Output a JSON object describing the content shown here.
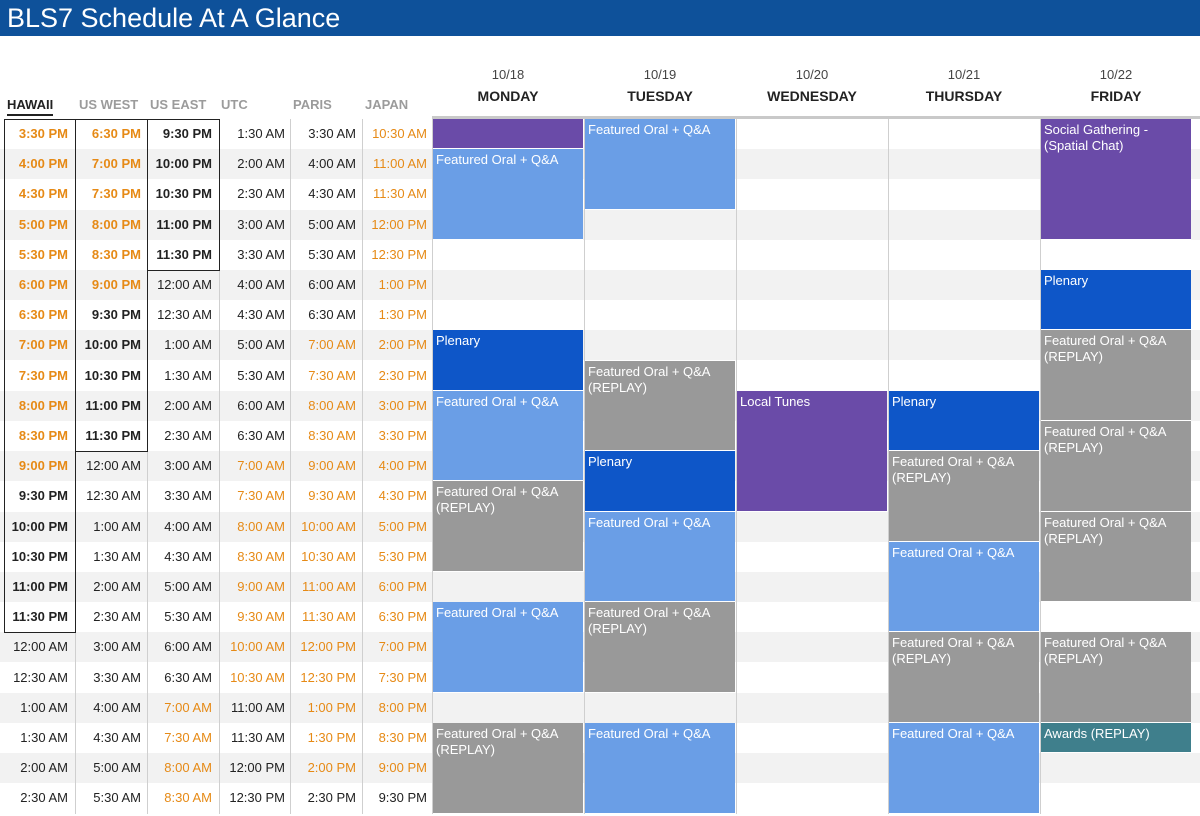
{
  "title": "BLS7 Schedule At A Glance",
  "timezones": [
    "HAWAII",
    "US WEST",
    "US EAST",
    "UTC",
    "PARIS",
    "JAPAN"
  ],
  "days": [
    {
      "date": "10/18",
      "name": "MONDAY"
    },
    {
      "date": "10/19",
      "name": "TUESDAY"
    },
    {
      "date": "10/20",
      "name": "WEDNESDAY"
    },
    {
      "date": "10/21",
      "name": "THURSDAY"
    },
    {
      "date": "10/22",
      "name": "FRIDAY"
    }
  ],
  "colors": {
    "header": "#0e519a",
    "purple": "#6a4ba8",
    "light_blue": "#6a9ee6",
    "dark_blue": "#0e56c8",
    "gray": "#999999",
    "teal": "#3f7f8c",
    "orange_text": "#e68a16",
    "row_alt": "#f2f2f2"
  },
  "times": [
    [
      "3:30 PM",
      "6:30 PM",
      "9:30 PM",
      "1:30 AM",
      "3:30 AM",
      "10:30 AM"
    ],
    [
      "4:00 PM",
      "7:00 PM",
      "10:00 PM",
      "2:00 AM",
      "4:00 AM",
      "11:00 AM"
    ],
    [
      "4:30 PM",
      "7:30 PM",
      "10:30 PM",
      "2:30 AM",
      "4:30 AM",
      "11:30 AM"
    ],
    [
      "5:00 PM",
      "8:00 PM",
      "11:00 PM",
      "3:00 AM",
      "5:00 AM",
      "12:00 PM"
    ],
    [
      "5:30 PM",
      "8:30 PM",
      "11:30 PM",
      "3:30 AM",
      "5:30 AM",
      "12:30 PM"
    ],
    [
      "6:00 PM",
      "9:00 PM",
      "12:00 AM",
      "4:00 AM",
      "6:00 AM",
      "1:00 PM"
    ],
    [
      "6:30 PM",
      "9:30 PM",
      "12:30 AM",
      "4:30 AM",
      "6:30 AM",
      "1:30 PM"
    ],
    [
      "7:00 PM",
      "10:00 PM",
      "1:00 AM",
      "5:00 AM",
      "7:00 AM",
      "2:00 PM"
    ],
    [
      "7:30 PM",
      "10:30 PM",
      "1:30 AM",
      "5:30 AM",
      "7:30 AM",
      "2:30 PM"
    ],
    [
      "8:00 PM",
      "11:00 PM",
      "2:00 AM",
      "6:00 AM",
      "8:00 AM",
      "3:00 PM"
    ],
    [
      "8:30 PM",
      "11:30 PM",
      "2:30 AM",
      "6:30 AM",
      "8:30 AM",
      "3:30 PM"
    ],
    [
      "9:00 PM",
      "12:00 AM",
      "3:00 AM",
      "7:00 AM",
      "9:00 AM",
      "4:00 PM"
    ],
    [
      "9:30 PM",
      "12:30 AM",
      "3:30 AM",
      "7:30 AM",
      "9:30 AM",
      "4:30 PM"
    ],
    [
      "10:00 PM",
      "1:00 AM",
      "4:00 AM",
      "8:00 AM",
      "10:00 AM",
      "5:00 PM"
    ],
    [
      "10:30 PM",
      "1:30 AM",
      "4:30 AM",
      "8:30 AM",
      "10:30 AM",
      "5:30 PM"
    ],
    [
      "11:00 PM",
      "2:00 AM",
      "5:00 AM",
      "9:00 AM",
      "11:00 AM",
      "6:00 PM"
    ],
    [
      "11:30 PM",
      "2:30 AM",
      "5:30 AM",
      "9:30 AM",
      "11:30 AM",
      "6:30 PM"
    ],
    [
      "12:00 AM",
      "3:00 AM",
      "6:00 AM",
      "10:00 AM",
      "12:00 PM",
      "7:00 PM"
    ],
    [
      "12:30 AM",
      "3:30 AM",
      "6:30 AM",
      "10:30 AM",
      "12:30 PM",
      "7:30 PM"
    ],
    [
      "1:00 AM",
      "4:00 AM",
      "7:00 AM",
      "11:00 AM",
      "1:00 PM",
      "8:00 PM"
    ],
    [
      "1:30 AM",
      "4:30 AM",
      "7:30 AM",
      "11:30 AM",
      "1:30 PM",
      "8:30 PM"
    ],
    [
      "2:00 AM",
      "5:00 AM",
      "8:00 AM",
      "12:00 PM",
      "2:00 PM",
      "9:00 PM"
    ],
    [
      "2:30 AM",
      "5:30 AM",
      "8:30 AM",
      "12:30 PM",
      "2:30 PM",
      "9:30 PM"
    ]
  ],
  "events": [
    {
      "day": 0,
      "start": 0,
      "span": 1,
      "label": "",
      "kind": "purple"
    },
    {
      "day": 0,
      "start": 1,
      "span": 3,
      "label": "Featured Oral + Q&A",
      "kind": "light_blue"
    },
    {
      "day": 0,
      "start": 7,
      "span": 2,
      "label": "Plenary",
      "kind": "dark_blue"
    },
    {
      "day": 0,
      "start": 9,
      "span": 3,
      "label": "Featured Oral + Q&A",
      "kind": "light_blue"
    },
    {
      "day": 0,
      "start": 12,
      "span": 3,
      "label": "Featured Oral + Q&A (REPLAY)",
      "kind": "gray"
    },
    {
      "day": 0,
      "start": 16,
      "span": 3,
      "label": "Featured Oral + Q&A",
      "kind": "light_blue"
    },
    {
      "day": 0,
      "start": 20,
      "span": 3,
      "label": "Featured Oral + Q&A (REPLAY)",
      "kind": "gray"
    },
    {
      "day": 1,
      "start": 0,
      "span": 3,
      "label": "Featured Oral + Q&A",
      "kind": "light_blue"
    },
    {
      "day": 1,
      "start": 8,
      "span": 3,
      "label": "Featured Oral + Q&A (REPLAY)",
      "kind": "gray"
    },
    {
      "day": 1,
      "start": 11,
      "span": 2,
      "label": "Plenary",
      "kind": "dark_blue"
    },
    {
      "day": 1,
      "start": 13,
      "span": 3,
      "label": "Featured Oral + Q&A",
      "kind": "light_blue"
    },
    {
      "day": 1,
      "start": 16,
      "span": 3,
      "label": "Featured Oral + Q&A (REPLAY)",
      "kind": "gray"
    },
    {
      "day": 1,
      "start": 20,
      "span": 3,
      "label": "Featured Oral + Q&A",
      "kind": "light_blue"
    },
    {
      "day": 2,
      "start": 9,
      "span": 4,
      "label": "Local Tunes",
      "kind": "purple"
    },
    {
      "day": 3,
      "start": 9,
      "span": 2,
      "label": "Plenary",
      "kind": "dark_blue"
    },
    {
      "day": 3,
      "start": 11,
      "span": 3,
      "label": "Featured Oral + Q&A (REPLAY)",
      "kind": "gray"
    },
    {
      "day": 3,
      "start": 14,
      "span": 3,
      "label": "Featured Oral + Q&A",
      "kind": "light_blue"
    },
    {
      "day": 3,
      "start": 17,
      "span": 3,
      "label": "Featured Oral + Q&A (REPLAY)",
      "kind": "gray"
    },
    {
      "day": 3,
      "start": 20,
      "span": 3,
      "label": "Featured Oral + Q&A",
      "kind": "light_blue"
    },
    {
      "day": 4,
      "start": 0,
      "span": 4,
      "label": "Social Gathering - (Spatial Chat)",
      "kind": "purple"
    },
    {
      "day": 4,
      "start": 5,
      "span": 2,
      "label": "Plenary",
      "kind": "dark_blue"
    },
    {
      "day": 4,
      "start": 7,
      "span": 3,
      "label": "Featured Oral + Q&A (REPLAY)",
      "kind": "gray"
    },
    {
      "day": 4,
      "start": 10,
      "span": 3,
      "label": "Featured Oral + Q&A (REPLAY)",
      "kind": "gray"
    },
    {
      "day": 4,
      "start": 13,
      "span": 3,
      "label": "Featured Oral + Q&A (REPLAY)",
      "kind": "gray"
    },
    {
      "day": 4,
      "start": 17,
      "span": 3,
      "label": "Featured Oral + Q&A (REPLAY)",
      "kind": "gray"
    },
    {
      "day": 4,
      "start": 20,
      "span": 1,
      "label": "Awards (REPLAY)",
      "kind": "teal"
    }
  ]
}
